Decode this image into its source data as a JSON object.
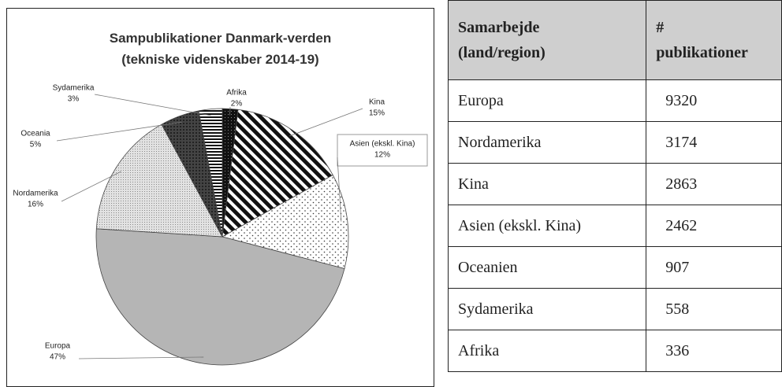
{
  "chart_data": {
    "type": "pie",
    "title": "Sampublikationer Danmark-verden\n(tekniske videnskaber 2014-19)",
    "categories": [
      "Afrika",
      "Kina",
      "Asien (ekskl. Kina)",
      "Europa",
      "Nordamerika",
      "Oceania",
      "Sydamerika"
    ],
    "values": [
      2,
      15,
      12,
      47,
      16,
      5,
      3
    ],
    "value_labels": [
      "2%",
      "15%",
      "12%",
      "47%",
      "16%",
      "5%",
      "3%"
    ]
  },
  "table": {
    "header": [
      "Samarbejde\n(land/region)",
      "#\npublikationer"
    ],
    "rows": [
      [
        "Europa",
        9320
      ],
      [
        "Nordamerika",
        3174
      ],
      [
        "Kina",
        2863
      ],
      [
        "Asien (ekskl. Kina)",
        2462
      ],
      [
        "Oceanien",
        907
      ],
      [
        "Sydamerika",
        558
      ],
      [
        "Afrika",
        336
      ]
    ]
  }
}
